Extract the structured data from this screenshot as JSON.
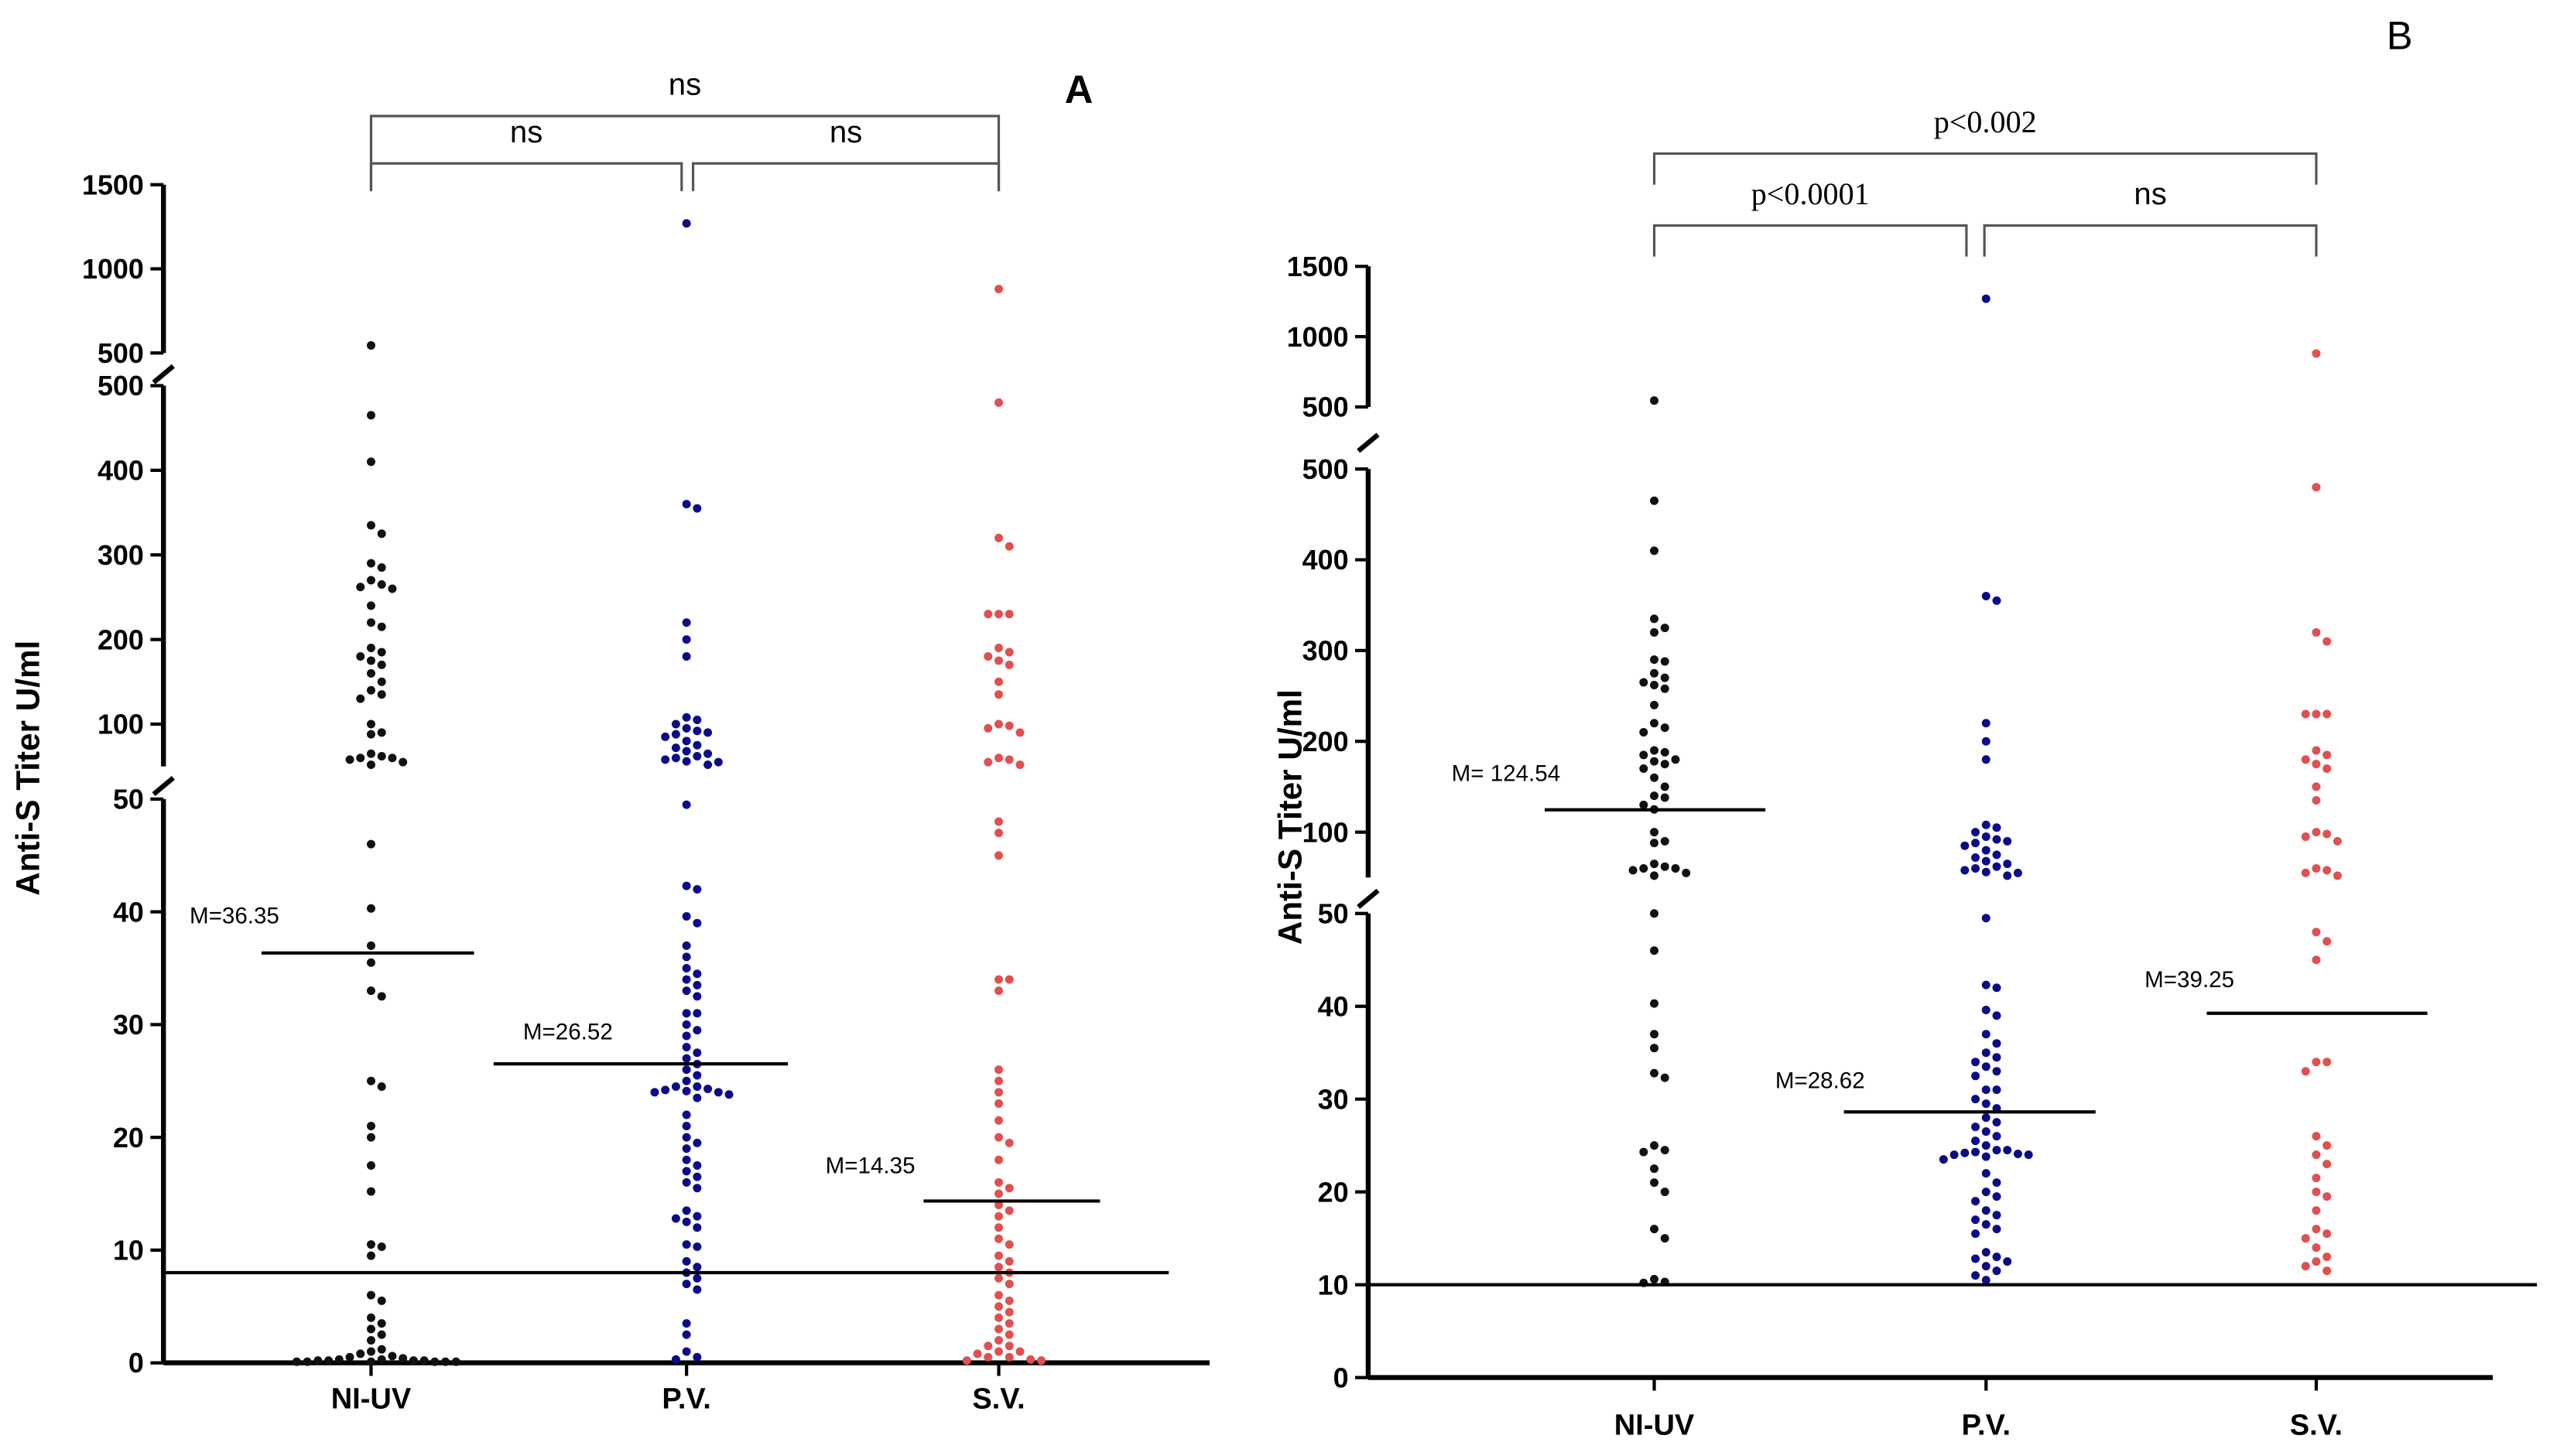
{
  "chart_data": [
    {
      "type": "scatter",
      "panel_label": "A",
      "ylabel": "Anti-S Titer U/ml",
      "xlabel": "",
      "categories": [
        "NI-UV",
        "P.V.",
        "S.V."
      ],
      "y_axis_segments": [
        {
          "range": [
            0,
            50
          ],
          "ticks": [
            0,
            10,
            20,
            30,
            40,
            50
          ]
        },
        {
          "range": [
            50,
            500
          ],
          "ticks": [
            100,
            200,
            300,
            400,
            500
          ]
        },
        {
          "range": [
            500,
            1500
          ],
          "ticks": [
            500,
            1000,
            1500
          ]
        }
      ],
      "threshold": 8,
      "series": [
        {
          "name": "NI-UV",
          "color": "#111111",
          "mean": 36.35,
          "mean_label": "M=36.35",
          "values": [
            545,
            465,
            410,
            335,
            325,
            290,
            285,
            270,
            265,
            262,
            260,
            240,
            220,
            215,
            190,
            185,
            180,
            175,
            170,
            160,
            150,
            140,
            135,
            130,
            100,
            90,
            88,
            65,
            62,
            60,
            60,
            58,
            55,
            52,
            46,
            40.3,
            37,
            35.5,
            33,
            32.5,
            25,
            24.5,
            21,
            20,
            17.5,
            15.2,
            10.5,
            10.3,
            9.5,
            6,
            5.5,
            4,
            3.5,
            3,
            2.5,
            2,
            1.2,
            1,
            0.8,
            0.6,
            0.5,
            0.4,
            0.3,
            0.3,
            0.2,
            0.2,
            0.2,
            0.2,
            0.1,
            0.1,
            0.1,
            0.1,
            0.1,
            0.1
          ]
        },
        {
          "name": "P.V.",
          "color": "#0b0b8a",
          "mean": 26.52,
          "mean_label": "M=26.52",
          "values": [
            1270,
            360,
            355,
            220,
            200,
            180,
            108,
            105,
            100,
            95,
            92,
            90,
            88,
            85,
            80,
            75,
            72,
            68,
            65,
            62,
            60,
            58,
            56,
            55,
            52,
            49.5,
            42.3,
            42,
            39.6,
            39,
            37,
            36,
            35,
            34.5,
            34,
            33.5,
            33,
            32.5,
            31,
            31,
            30,
            29.5,
            29,
            28,
            27.5,
            27,
            26.5,
            26,
            25.5,
            25,
            24.5,
            24.5,
            24.3,
            24.2,
            24.1,
            24,
            24,
            23.8,
            23.5,
            22,
            21,
            20,
            19.5,
            19,
            18,
            17.5,
            17,
            16.5,
            16,
            15.5,
            13.5,
            13,
            12.8,
            12.5,
            12,
            10.5,
            10.3,
            9,
            8.5,
            8,
            7.5,
            7,
            6.5,
            3.5,
            2.5,
            1,
            0.5,
            0.3
          ]
        },
        {
          "name": "S.V.",
          "color": "#e05050",
          "mean": 14.35,
          "mean_label": "M=14.35",
          "values": [
            880,
            480,
            320,
            310,
            230,
            230,
            230,
            190,
            185,
            180,
            175,
            170,
            150,
            135,
            100,
            98,
            95,
            90,
            60,
            58,
            55,
            52,
            48,
            47,
            45,
            34,
            34,
            33,
            26,
            25,
            24,
            23,
            21.5,
            20,
            19.5,
            18,
            16,
            15.5,
            15,
            14,
            13.5,
            13,
            12,
            11,
            10.5,
            9.5,
            9,
            8.5,
            8,
            7.5,
            7,
            6,
            5.5,
            5,
            4.5,
            4,
            3.5,
            3,
            2.5,
            2,
            1.5,
            1.5,
            1,
            1,
            0.8,
            0.5,
            0.5,
            0.3,
            0.2,
            0.2
          ]
        }
      ],
      "comparisons": [
        {
          "groups": [
            "NI-UV",
            "P.V."
          ],
          "label": "ns"
        },
        {
          "groups": [
            "P.V.",
            "S.V."
          ],
          "label": "ns"
        },
        {
          "groups": [
            "NI-UV",
            "S.V."
          ],
          "label": "ns"
        }
      ]
    },
    {
      "type": "scatter",
      "panel_label": "B",
      "ylabel": "Anti-S Titer U/ml",
      "xlabel": "",
      "categories": [
        "NI-UV",
        "P.V.",
        "S.V."
      ],
      "y_axis_segments": [
        {
          "range": [
            0,
            50
          ],
          "ticks": [
            0,
            10,
            20,
            30,
            40,
            50
          ]
        },
        {
          "range": [
            50,
            500
          ],
          "ticks": [
            100,
            200,
            300,
            400,
            500
          ]
        },
        {
          "range": [
            500,
            1500
          ],
          "ticks": [
            500,
            1000,
            1500
          ]
        }
      ],
      "threshold": 10,
      "series": [
        {
          "name": "NI-UV",
          "color": "#111111",
          "mean": 124.54,
          "mean_label": "M= 124.54",
          "values": [
            545,
            465,
            410,
            335,
            325,
            320,
            290,
            288,
            275,
            270,
            265,
            262,
            258,
            240,
            220,
            215,
            210,
            190,
            188,
            185,
            180,
            178,
            175,
            170,
            160,
            150,
            140,
            138,
            130,
            125,
            100,
            90,
            88,
            65,
            62,
            60,
            60,
            58,
            55,
            52,
            50,
            46,
            40.3,
            37,
            35.5,
            32.8,
            32.3,
            25,
            24.5,
            24.3,
            22.5,
            21,
            20,
            16,
            15,
            10.6,
            10.3,
            10.2
          ]
        },
        {
          "name": "P.V.",
          "color": "#0b0b8a",
          "mean": 28.62,
          "mean_label": "M=28.62",
          "values": [
            1270,
            360,
            355,
            220,
            200,
            180,
            108,
            105,
            100,
            95,
            92,
            90,
            88,
            85,
            80,
            75,
            72,
            68,
            65,
            62,
            60,
            58,
            56,
            55,
            52,
            49.5,
            42.3,
            42,
            39.6,
            39,
            37,
            36,
            35,
            34.5,
            34,
            33.5,
            33,
            32.5,
            31,
            31,
            30,
            29.5,
            29,
            28,
            27.5,
            27,
            26.5,
            26,
            25.5,
            25,
            24.5,
            24.5,
            24.3,
            24.2,
            24.1,
            24,
            24,
            23.8,
            23.5,
            22,
            21,
            20,
            19.5,
            19,
            18,
            17.5,
            17,
            16.5,
            16,
            15.5,
            13.5,
            13,
            12.8,
            12.5,
            12,
            11.5,
            11,
            10.5
          ]
        },
        {
          "name": "S.V.",
          "color": "#e05050",
          "mean": 39.25,
          "mean_label": "M=39.25",
          "values": [
            880,
            480,
            320,
            310,
            230,
            230,
            230,
            190,
            185,
            180,
            175,
            170,
            150,
            135,
            100,
            98,
            95,
            90,
            60,
            58,
            55,
            52,
            48,
            47,
            45,
            34,
            34,
            33,
            26,
            25,
            24,
            23,
            21.5,
            20,
            19.5,
            18,
            16,
            15.5,
            15,
            14,
            13,
            12.5,
            12,
            11.5
          ]
        }
      ],
      "comparisons": [
        {
          "groups": [
            "NI-UV",
            "P.V."
          ],
          "label": "p<0.0001"
        },
        {
          "groups": [
            "P.V.",
            "S.V."
          ],
          "label": "ns"
        },
        {
          "groups": [
            "NI-UV",
            "S.V."
          ],
          "label": "p<0.002"
        }
      ]
    }
  ]
}
